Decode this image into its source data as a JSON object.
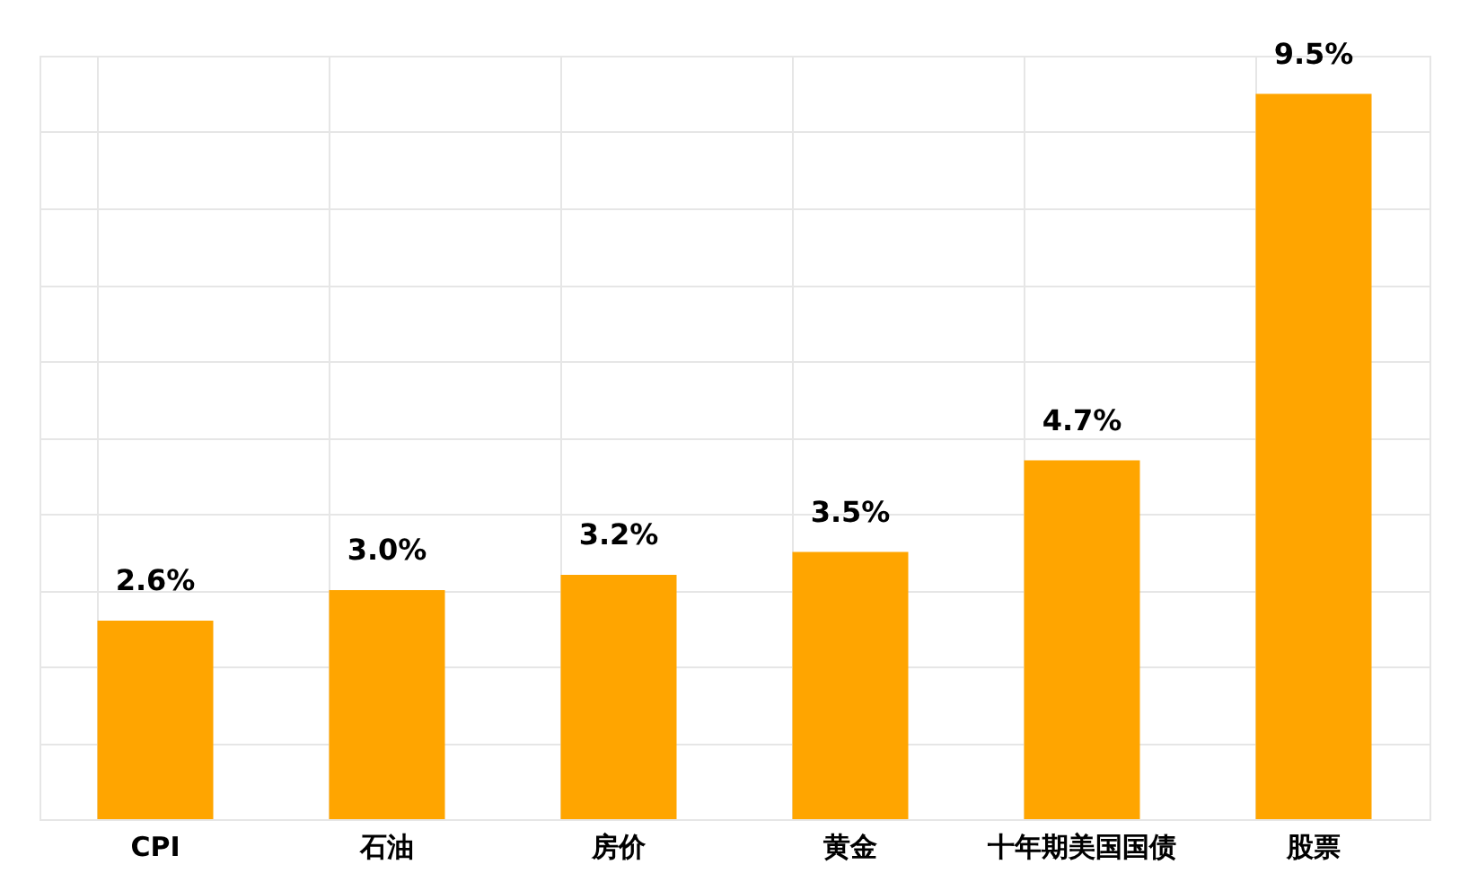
{
  "chart_data": {
    "type": "bar",
    "categories": [
      "CPI",
      "石油",
      "房价",
      "黄金",
      "十年期美国国债",
      "股票"
    ],
    "values": [
      2.6,
      3.0,
      3.2,
      3.5,
      4.7,
      9.5
    ],
    "value_labels": [
      "2.6%",
      "3.0%",
      "3.2%",
      "3.5%",
      "4.7%",
      "9.5%"
    ],
    "color": "#ffa500",
    "ylim": [
      0,
      10
    ],
    "grid": true,
    "tick_labels": "x"
  }
}
